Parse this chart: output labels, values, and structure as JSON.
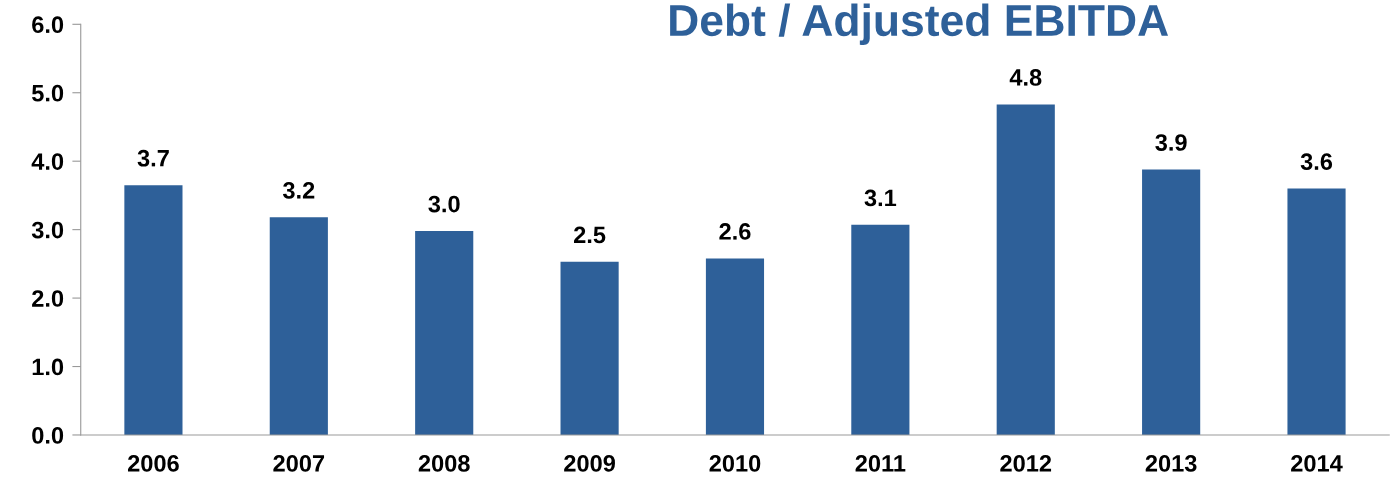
{
  "chart_data": {
    "type": "bar",
    "title": "Debt / Adjusted EBITDA",
    "categories": [
      "2006",
      "2007",
      "2008",
      "2009",
      "2010",
      "2011",
      "2012",
      "2013",
      "2014"
    ],
    "values": [
      3.65,
      3.18,
      2.98,
      2.53,
      2.58,
      3.07,
      4.83,
      3.88,
      3.6
    ],
    "value_labels": [
      "3.7",
      "3.2",
      "3.0",
      "2.5",
      "2.6",
      "3.1",
      "4.8",
      "3.9",
      "3.6"
    ],
    "color": "#2e6099",
    "ylim": [
      0,
      6
    ],
    "yticks": [
      {
        "value": 0,
        "label": "0.0"
      },
      {
        "value": 1,
        "label": "1.0"
      },
      {
        "value": 2,
        "label": "2.0"
      },
      {
        "value": 3,
        "label": "3.0"
      },
      {
        "value": 4,
        "label": "4.0"
      },
      {
        "value": 5,
        "label": "5.0"
      },
      {
        "value": 6,
        "label": "6.0"
      }
    ],
    "grid": false,
    "legend": false
  }
}
